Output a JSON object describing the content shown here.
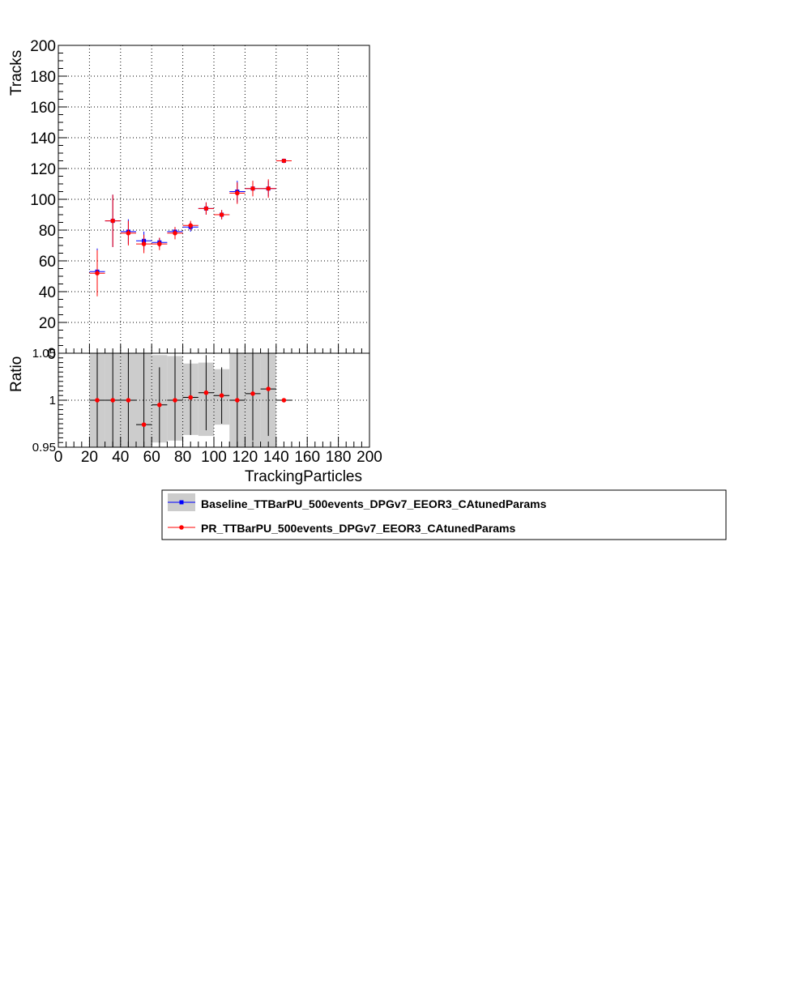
{
  "chart_data": {
    "type": "scatter",
    "x_bin_edges": [
      20,
      30,
      40,
      50,
      60,
      70,
      80,
      90,
      100,
      110,
      120,
      130,
      140,
      150
    ],
    "top_panel": {
      "ylabel": "Tracks",
      "xlim": [
        0,
        200
      ],
      "ylim": [
        0,
        200
      ],
      "y_ticks": [
        "0",
        "20",
        "40",
        "60",
        "80",
        "100",
        "120",
        "140",
        "160",
        "180",
        "200"
      ],
      "grid": true,
      "series": [
        {
          "name": "Baseline_TTBarPU_500events_DPGv7_EEOR3_CAtunedParams",
          "color": "#0000ff",
          "marker": "square",
          "x": [
            25,
            35,
            45,
            55,
            65,
            75,
            85,
            95,
            105,
            115,
            125,
            135,
            145
          ],
          "y": [
            53,
            86,
            79,
            73,
            72,
            79,
            82,
            94,
            90,
            105,
            107,
            107,
            125
          ],
          "y_err": [
            15,
            17,
            8,
            6,
            3,
            3,
            3,
            4,
            3,
            7,
            5,
            5,
            1
          ]
        },
        {
          "name": "PR_TTBarPU_500events_DPGv7_EEOR3_CAtunedParams",
          "color": "#ff0000",
          "marker": "circle",
          "x": [
            25,
            35,
            45,
            55,
            65,
            75,
            85,
            95,
            105,
            115,
            125,
            135,
            145
          ],
          "y": [
            52,
            86,
            78,
            71,
            71,
            78,
            83,
            94,
            90,
            104,
            107,
            107,
            125
          ],
          "y_err": [
            15,
            17,
            8,
            6,
            4,
            4,
            3,
            4,
            3,
            7,
            5,
            6,
            1
          ]
        }
      ]
    },
    "ratio_panel": {
      "ylabel": "Ratio",
      "xlabel": "TrackingParticles",
      "xlim": [
        0,
        200
      ],
      "ylim": [
        0.95,
        1.05
      ],
      "y_ticks": [
        "0.95",
        "1",
        "1.05"
      ],
      "x_ticks": [
        "0",
        "20",
        "40",
        "60",
        "80",
        "100",
        "120",
        "140",
        "160",
        "180",
        "200"
      ],
      "grid": true,
      "band_low": [
        0.9,
        0.9,
        0.9,
        0.9,
        0.955,
        0.957,
        0.963,
        0.962,
        0.974,
        0.9,
        0.9,
        0.9,
        1.0
      ],
      "band_high": [
        1.1,
        1.1,
        1.1,
        1.05,
        1.048,
        1.047,
        1.039,
        1.04,
        1.033,
        1.1,
        1.1,
        1.1,
        1.0
      ],
      "points": {
        "x": [
          25,
          35,
          45,
          55,
          65,
          75,
          85,
          95,
          105,
          115,
          125,
          135,
          145
        ],
        "y": [
          1.0,
          1.0,
          1.0,
          0.974,
          0.995,
          1.0,
          1.003,
          1.008,
          1.005,
          1.0,
          1.007,
          1.012,
          1.0
        ],
        "y_err": [
          0.3,
          0.3,
          0.1,
          0.1,
          0.04,
          0.05,
          0.04,
          0.04,
          0.03,
          0.1,
          0.05,
          0.05,
          0.0
        ]
      }
    }
  }
}
